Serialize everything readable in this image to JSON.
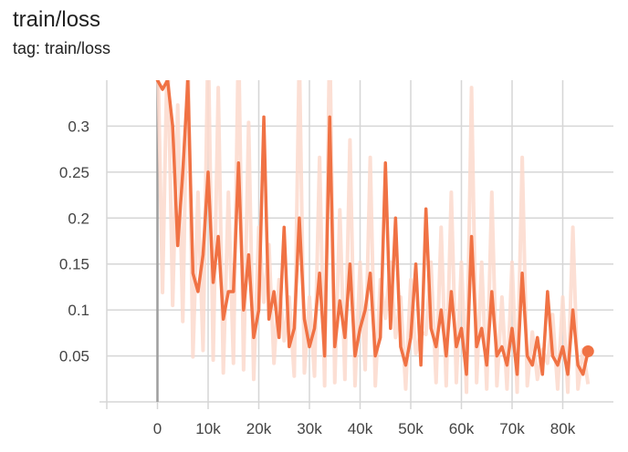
{
  "header": {
    "title": "train/loss",
    "subtitle": "tag: train/loss"
  },
  "chart_data": {
    "type": "line",
    "title": "train/loss",
    "subtitle": "tag: train/loss",
    "xlabel": "",
    "ylabel": "",
    "xlim": [
      -10000,
      90000
    ],
    "ylim": [
      0,
      0.35
    ],
    "grid": true,
    "x_tick_labels": [
      "0",
      "10k",
      "20k",
      "30k",
      "40k",
      "50k",
      "60k",
      "70k",
      "80k"
    ],
    "y_tick_labels": [
      "0.05",
      "0.1",
      "0.15",
      "0.2",
      "0.25",
      "0.3"
    ],
    "colors": {
      "smoothed": "#f07244",
      "raw": "#fbd9cc",
      "grid": "#d6d6d6",
      "zero_line": "#9e9e9e"
    },
    "series": [
      {
        "x": [
          0,
          1000,
          2000,
          3000,
          4000,
          5000,
          6000,
          7000,
          8000,
          9000,
          10000,
          11000,
          12000,
          13000,
          14000,
          15000,
          16000,
          17000,
          18000,
          19000,
          20000,
          21000,
          22000,
          23000,
          24000,
          25000,
          26000,
          27000,
          28000,
          29000,
          30000,
          31000,
          32000,
          33000,
          34000,
          35000,
          36000,
          37000,
          38000,
          39000,
          40000,
          41000,
          42000,
          43000,
          44000,
          45000,
          46000,
          47000,
          48000,
          49000,
          50000,
          51000,
          52000,
          53000,
          54000,
          55000,
          56000,
          57000,
          58000,
          59000,
          60000,
          61000,
          62000,
          63000,
          64000,
          65000,
          66000,
          67000,
          68000,
          69000,
          70000,
          71000,
          72000,
          73000,
          74000,
          75000,
          76000,
          77000,
          78000,
          79000,
          80000,
          81000,
          82000,
          83000,
          84000,
          85000
        ],
        "y": [
          0.35,
          0.34,
          0.35,
          0.3,
          0.17,
          0.25,
          0.35,
          0.14,
          0.12,
          0.16,
          0.25,
          0.13,
          0.18,
          0.09,
          0.12,
          0.12,
          0.26,
          0.1,
          0.16,
          0.07,
          0.1,
          0.31,
          0.09,
          0.12,
          0.07,
          0.19,
          0.06,
          0.08,
          0.2,
          0.09,
          0.06,
          0.08,
          0.14,
          0.05,
          0.31,
          0.06,
          0.11,
          0.07,
          0.15,
          0.05,
          0.08,
          0.1,
          0.14,
          0.05,
          0.07,
          0.26,
          0.08,
          0.2,
          0.06,
          0.04,
          0.07,
          0.15,
          0.04,
          0.21,
          0.08,
          0.06,
          0.1,
          0.05,
          0.12,
          0.06,
          0.08,
          0.03,
          0.18,
          0.06,
          0.08,
          0.04,
          0.12,
          0.05,
          0.06,
          0.04,
          0.08,
          0.03,
          0.14,
          0.05,
          0.04,
          0.07,
          0.03,
          0.12,
          0.05,
          0.04,
          0.06,
          0.03,
          0.1,
          0.04,
          0.03,
          0.055
        ]
      }
    ]
  }
}
